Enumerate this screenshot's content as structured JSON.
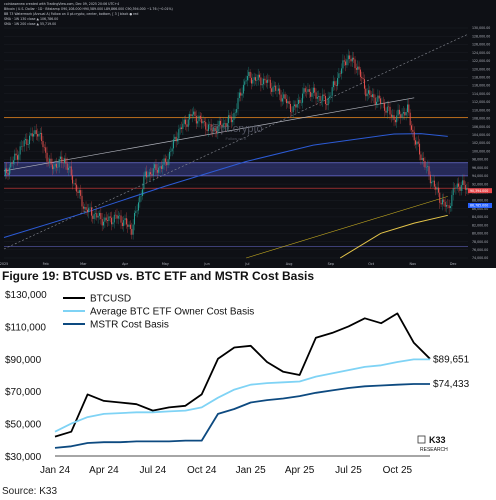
{
  "tv": {
    "header_lines": [
      "coinbasenew created with TradingView.com, Dec 09, 2025 20:06 UTC+4",
      "Bitcoin / U.S. Dollar · 1D · Bitstamp  O90,108.000  H90,589.000  L89,866.000  C90,394.000  −1.76 (−0.01%)",
      "BB 73  Watermark (Annual A)  Follow on X  pt.crypto, center, bottom, [ 3 ]  black  ● red",
      "SMA  ·  1W  130  close  ▲ 106,786.00",
      "SMA  ·  1W  200  close  ▲ 55,719.00"
    ],
    "watermark": "@pt.crypto",
    "watermark_sub": "Follow on X",
    "month_labels": [
      "2025",
      "Feb",
      "Mar",
      "Apr",
      "May",
      "Jun",
      "Jul",
      "Aug",
      "Sep",
      "Oct",
      "Nov",
      "Dec"
    ],
    "price_labels": [
      "130,000.00",
      "128,000.00",
      "126,000.00",
      "124,000.00",
      "122,000.00",
      "120,000.00",
      "118,000.00",
      "116,000.00",
      "114,000.00",
      "112,000.00",
      "110,000.00",
      "108,000.00",
      "106,000.00",
      "104,000.00",
      "102,000.00",
      "100,000.00",
      "98,000.00",
      "96,000.00",
      "94,000.00",
      "92,000.00",
      "90,000.00",
      "88,000.00",
      "86,000.00",
      "84,000.00",
      "82,000.00",
      "80,000.00",
      "78,000.00",
      "76,000.00",
      "74,000.00"
    ],
    "tags": [
      {
        "text": "90,394.000",
        "color": "#e8494d"
      },
      {
        "text": "86,785.000",
        "color": "#2962ff"
      }
    ]
  },
  "figure_title": "Figure 19: BTCUSD vs. BTC ETF and MSTR Cost Basis",
  "source_text": "Source: K33",
  "k33_logo": "K33",
  "k33_logo_sub": "RESEARCH",
  "chart_data": {
    "type": "line",
    "title": "Figure 19: BTCUSD vs. BTC ETF and MSTR Cost Basis",
    "xlabel": "",
    "ylabel": "",
    "ylim": [
      30000,
      130000
    ],
    "grid": false,
    "legend": "top-left",
    "x_ticks": [
      "Jan 24",
      "Apr 24",
      "Jul 24",
      "Oct 24",
      "Jan 25",
      "Apr 25",
      "Jul 25",
      "Oct 25"
    ],
    "y_ticks": [
      "$130,000",
      "$110,000",
      "$90,000",
      "$70,000",
      "$50,000",
      "$30,000"
    ],
    "x": [
      "Jan 24",
      "Feb 24",
      "Mar 24",
      "Apr 24",
      "May 24",
      "Jun 24",
      "Jul 24",
      "Aug 24",
      "Sep 24",
      "Oct 24",
      "Nov 24",
      "Dec 24",
      "Jan 25",
      "Feb 25",
      "Mar 25",
      "Apr 25",
      "May 25",
      "Jun 25",
      "Jul 25",
      "Aug 25",
      "Sep 25",
      "Oct 25",
      "Nov 25",
      "Dec 25"
    ],
    "series": [
      {
        "name": "BTCUSD",
        "color": "#000000",
        "values": [
          42000,
          45000,
          68000,
          64000,
          63000,
          62000,
          58000,
          60000,
          61000,
          68000,
          90000,
          97000,
          98000,
          88000,
          82000,
          80000,
          103000,
          106000,
          110000,
          115000,
          112000,
          118000,
          100000,
          90000
        ]
      },
      {
        "name": "Average BTC ETF Owner Cost Basis",
        "color": "#7fd3f5",
        "values": [
          45000,
          50000,
          54000,
          56000,
          56500,
          57000,
          57000,
          57500,
          58000,
          60000,
          66000,
          71000,
          74000,
          75000,
          75500,
          76000,
          79000,
          81000,
          83000,
          85000,
          86000,
          88000,
          89651,
          89651
        ]
      },
      {
        "name": "MSTR Cost Basis",
        "color": "#0d4a80",
        "values": [
          35000,
          36000,
          38000,
          38500,
          38500,
          39000,
          39000,
          39000,
          39500,
          39500,
          56000,
          59000,
          63000,
          64500,
          65500,
          67000,
          69000,
          70500,
          72000,
          73000,
          73500,
          74000,
          74433,
          74433
        ]
      }
    ],
    "end_labels": [
      "$89,651",
      "$74,433"
    ]
  }
}
